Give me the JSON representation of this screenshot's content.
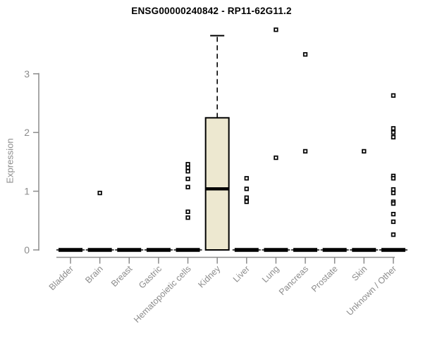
{
  "page": {
    "background": "#ffffff"
  },
  "chart_data": {
    "type": "boxplot",
    "title": "ENSG00000240842 - RP11-62G11.2",
    "ylabel": "Expression",
    "xlabel": "",
    "ylim": [
      0,
      3.8
    ],
    "yticks": [
      0,
      1,
      2,
      3
    ],
    "grid": false,
    "legend": null,
    "colors": {
      "box_fill": "#EDE8D0",
      "box_stroke": "#000000",
      "median": "#000000",
      "outlier_stroke": "#000000",
      "outlier_fill": "#ffffff",
      "axis": "#8C8C8C",
      "tick_label": "#8C8C8C",
      "title": "#000000"
    },
    "categories": [
      "Bladder",
      "Brain",
      "Breast",
      "Gastric",
      "Hematopoietic cells",
      "Kidney",
      "Liver",
      "Lung",
      "Pancreas",
      "Prostate",
      "Skin",
      "Unknown / Other"
    ],
    "series": [
      {
        "name": "Bladder",
        "q1": 0,
        "median": 0,
        "q3": 0,
        "whisker_low": 0,
        "whisker_high": 0,
        "outliers": []
      },
      {
        "name": "Brain",
        "q1": 0,
        "median": 0,
        "q3": 0,
        "whisker_low": 0,
        "whisker_high": 0,
        "outliers": [
          0.97
        ]
      },
      {
        "name": "Breast",
        "q1": 0,
        "median": 0,
        "q3": 0,
        "whisker_low": 0,
        "whisker_high": 0,
        "outliers": []
      },
      {
        "name": "Gastric",
        "q1": 0,
        "median": 0,
        "q3": 0,
        "whisker_low": 0,
        "whisker_high": 0,
        "outliers": []
      },
      {
        "name": "Hematopoietic cells",
        "q1": 0,
        "median": 0,
        "q3": 0,
        "whisker_low": 0,
        "whisker_high": 0,
        "outliers": [
          1.46,
          1.4,
          1.34,
          1.21,
          1.07,
          0.65,
          0.55
        ]
      },
      {
        "name": "Kidney",
        "q1": 0,
        "median": 1.04,
        "q3": 2.25,
        "whisker_low": 0,
        "whisker_high": 3.65,
        "outliers": []
      },
      {
        "name": "Liver",
        "q1": 0,
        "median": 0,
        "q3": 0,
        "whisker_low": 0,
        "whisker_high": 0,
        "outliers": [
          1.22,
          1.04,
          0.89,
          0.82
        ]
      },
      {
        "name": "Lung",
        "q1": 0,
        "median": 0,
        "q3": 0,
        "whisker_low": 0,
        "whisker_high": 0,
        "outliers": [
          3.75,
          1.57
        ]
      },
      {
        "name": "Pancreas",
        "q1": 0,
        "median": 0,
        "q3": 0,
        "whisker_low": 0,
        "whisker_high": 0,
        "outliers": [
          3.33,
          1.68
        ]
      },
      {
        "name": "Prostate",
        "q1": 0,
        "median": 0,
        "q3": 0,
        "whisker_low": 0,
        "whisker_high": 0,
        "outliers": []
      },
      {
        "name": "Skin",
        "q1": 0,
        "median": 0,
        "q3": 0,
        "whisker_low": 0,
        "whisker_high": 0,
        "outliers": [
          1.68
        ]
      },
      {
        "name": "Unknown / Other",
        "q1": 0,
        "median": 0,
        "q3": 0,
        "whisker_low": 0,
        "whisker_high": 0,
        "outliers": [
          2.63,
          2.07,
          2.0,
          1.92,
          1.26,
          1.22,
          1.03,
          0.97,
          0.82,
          0.79,
          0.61,
          0.48,
          0.26
        ]
      }
    ]
  }
}
